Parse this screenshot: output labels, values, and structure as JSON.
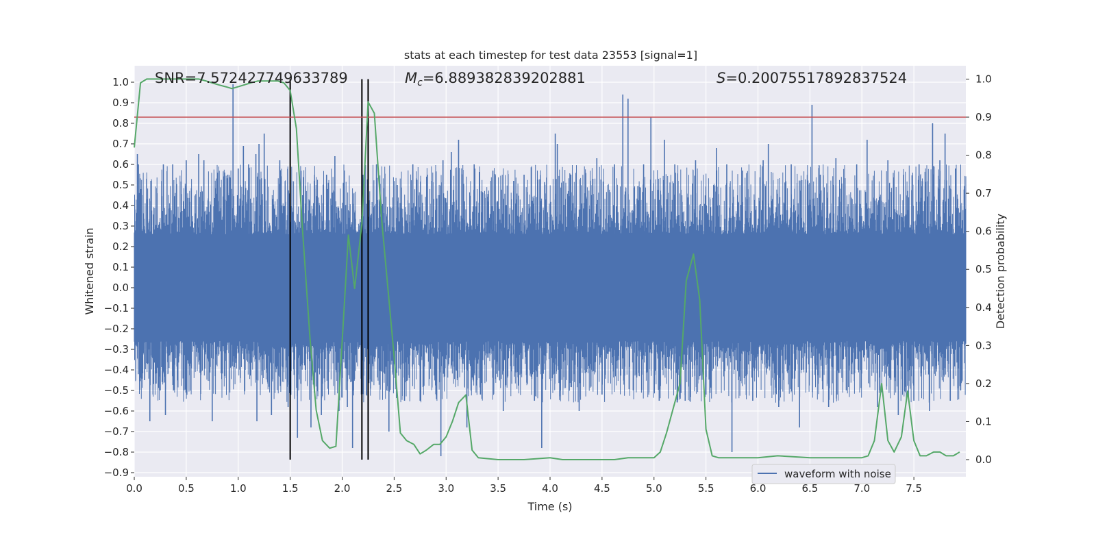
{
  "chart_data": {
    "type": "line",
    "title": "stats at each timestep for test data 23553 [signal=1]",
    "xlabel": "Time (s)",
    "ylabel_left": "Whitened strain",
    "ylabel_right": "Detection probability",
    "xlim": [
      0.0,
      8.0
    ],
    "ylim_left": [
      -0.92,
      1.08
    ],
    "ylim_right": [
      -0.045,
      1.035
    ],
    "xticks": [
      0.0,
      0.5,
      1.0,
      1.5,
      2.0,
      2.5,
      3.0,
      3.5,
      4.0,
      4.5,
      5.0,
      5.5,
      6.0,
      6.5,
      7.0,
      7.5
    ],
    "xtick_labels": [
      "0.0",
      "0.5",
      "1.0",
      "1.5",
      "2.0",
      "2.5",
      "3.0",
      "3.5",
      "4.0",
      "4.5",
      "5.0",
      "5.5",
      "6.0",
      "6.5",
      "7.0",
      "7.5"
    ],
    "yticks_left": [
      1.0,
      0.9,
      0.8,
      0.7,
      0.6,
      0.5,
      0.4,
      0.3,
      0.2,
      0.1,
      0.0,
      -0.1,
      -0.2,
      -0.3,
      -0.4,
      -0.5,
      -0.6,
      -0.7,
      -0.8,
      -0.9
    ],
    "ytick_labels_left": [
      "1.0",
      "0.9",
      "0.8",
      "0.7",
      "0.6",
      "0.5",
      "0.4",
      "0.3",
      "0.2",
      "0.1",
      "0.0",
      "−0.1",
      "−0.2",
      "−0.3",
      "−0.4",
      "−0.5",
      "−0.6",
      "−0.7",
      "−0.8",
      "−0.9"
    ],
    "yticks_right": [
      1.0,
      0.9,
      0.8,
      0.7,
      0.6,
      0.5,
      0.4,
      0.3,
      0.2,
      0.1,
      0.0
    ],
    "ytick_labels_right": [
      "1.0",
      "0.9",
      "0.8",
      "0.7",
      "0.6",
      "0.5",
      "0.4",
      "0.3",
      "0.2",
      "0.1",
      "0.0"
    ],
    "annotations": {
      "snr": "SNR=7.572427749633789",
      "mc_symbol": "M",
      "mc_sub": "c",
      "mc_value": "=6.889382839202881",
      "s_symbol": "S",
      "s_value": "=0.20075517892837524"
    },
    "legend": {
      "label": "waveform with noise",
      "placement": "lower-right"
    },
    "threshold_line": {
      "value_right_axis": 0.9,
      "color": "#c44e52"
    },
    "vertical_markers": {
      "x": [
        1.5,
        2.19,
        2.25
      ],
      "ymin_right": 0.0,
      "ymax_right": 1.0,
      "color": "#000000"
    },
    "waveform": {
      "name": "waveform with noise",
      "color": "#4c72b0",
      "x_range": [
        0.0,
        8.0
      ],
      "core_amplitude": 0.26,
      "spikes": [
        {
          "x": 0.03,
          "y": 0.65
        },
        {
          "x": 0.04,
          "y": 0.6
        },
        {
          "x": 0.1,
          "y": -0.45
        },
        {
          "x": 0.15,
          "y": -0.65
        },
        {
          "x": 0.16,
          "y": 0.52
        },
        {
          "x": 0.25,
          "y": -0.5
        },
        {
          "x": 0.28,
          "y": 0.6
        },
        {
          "x": 0.3,
          "y": -0.62
        },
        {
          "x": 0.37,
          "y": 0.6
        },
        {
          "x": 0.5,
          "y": 0.62
        },
        {
          "x": 0.62,
          "y": 0.65
        },
        {
          "x": 0.67,
          "y": 0.62
        },
        {
          "x": 0.75,
          "y": -0.65
        },
        {
          "x": 0.8,
          "y": 0.56
        },
        {
          "x": 0.9,
          "y": 0.55
        },
        {
          "x": 0.95,
          "y": 0.99
        },
        {
          "x": 1.0,
          "y": 0.58
        },
        {
          "x": 1.05,
          "y": 0.69
        },
        {
          "x": 1.1,
          "y": 0.6
        },
        {
          "x": 1.17,
          "y": 0.65
        },
        {
          "x": 1.18,
          "y": -0.65
        },
        {
          "x": 1.2,
          "y": 0.7
        },
        {
          "x": 1.25,
          "y": 0.75
        },
        {
          "x": 1.32,
          "y": -0.62
        },
        {
          "x": 1.4,
          "y": 0.62
        },
        {
          "x": 1.48,
          "y": -0.58
        },
        {
          "x": 1.5,
          "y": 0.35
        },
        {
          "x": 1.57,
          "y": -0.73
        },
        {
          "x": 1.62,
          "y": 0.45
        },
        {
          "x": 1.7,
          "y": -0.68
        },
        {
          "x": 1.75,
          "y": 0.5
        },
        {
          "x": 1.8,
          "y": -0.62
        },
        {
          "x": 1.85,
          "y": 0.55
        },
        {
          "x": 1.93,
          "y": 0.64
        },
        {
          "x": 1.97,
          "y": -0.6
        },
        {
          "x": 2.05,
          "y": -0.58
        },
        {
          "x": 2.1,
          "y": -0.78
        },
        {
          "x": 2.2,
          "y": 0.55
        },
        {
          "x": 2.25,
          "y": -0.65
        },
        {
          "x": 2.33,
          "y": 0.6
        },
        {
          "x": 2.45,
          "y": -0.7
        },
        {
          "x": 2.53,
          "y": 0.5
        },
        {
          "x": 2.6,
          "y": -0.55
        },
        {
          "x": 2.68,
          "y": 0.6
        },
        {
          "x": 2.75,
          "y": -0.55
        },
        {
          "x": 2.82,
          "y": 0.55
        },
        {
          "x": 2.95,
          "y": -0.82
        },
        {
          "x": 2.97,
          "y": 0.62
        },
        {
          "x": 3.05,
          "y": 0.66
        },
        {
          "x": 3.12,
          "y": 0.72
        },
        {
          "x": 3.2,
          "y": -0.68
        },
        {
          "x": 3.27,
          "y": 0.6
        },
        {
          "x": 3.33,
          "y": -0.52
        },
        {
          "x": 3.45,
          "y": 0.57
        },
        {
          "x": 3.55,
          "y": -0.6
        },
        {
          "x": 3.65,
          "y": 0.52
        },
        {
          "x": 3.75,
          "y": 0.55
        },
        {
          "x": 3.85,
          "y": -0.55
        },
        {
          "x": 3.92,
          "y": -0.78
        },
        {
          "x": 4.05,
          "y": 0.75
        },
        {
          "x": 4.07,
          "y": 0.7
        },
        {
          "x": 4.1,
          "y": -0.5
        },
        {
          "x": 4.2,
          "y": 0.55
        },
        {
          "x": 4.28,
          "y": -0.6
        },
        {
          "x": 4.45,
          "y": 0.63
        },
        {
          "x": 4.5,
          "y": -0.52
        },
        {
          "x": 4.62,
          "y": 0.6
        },
        {
          "x": 4.7,
          "y": 0.94
        },
        {
          "x": 4.75,
          "y": 0.92
        },
        {
          "x": 4.8,
          "y": -0.5
        },
        {
          "x": 4.9,
          "y": 0.6
        },
        {
          "x": 4.97,
          "y": 0.83
        },
        {
          "x": 5.05,
          "y": -0.55
        },
        {
          "x": 5.1,
          "y": 0.72
        },
        {
          "x": 5.2,
          "y": 0.6
        },
        {
          "x": 5.3,
          "y": -0.55
        },
        {
          "x": 5.4,
          "y": 0.62
        },
        {
          "x": 5.5,
          "y": -0.52
        },
        {
          "x": 5.6,
          "y": 0.68
        },
        {
          "x": 5.7,
          "y": 0.6
        },
        {
          "x": 5.75,
          "y": -0.8
        },
        {
          "x": 5.85,
          "y": 0.57
        },
        {
          "x": 5.95,
          "y": -0.55
        },
        {
          "x": 6.05,
          "y": 0.62
        },
        {
          "x": 6.1,
          "y": 0.7
        },
        {
          "x": 6.2,
          "y": -0.58
        },
        {
          "x": 6.32,
          "y": 0.6
        },
        {
          "x": 6.4,
          "y": -0.68
        },
        {
          "x": 6.52,
          "y": 0.89
        },
        {
          "x": 6.6,
          "y": 0.55
        },
        {
          "x": 6.68,
          "y": -0.58
        },
        {
          "x": 6.75,
          "y": 0.63
        },
        {
          "x": 6.85,
          "y": -0.5
        },
        {
          "x": 6.95,
          "y": 0.6
        },
        {
          "x": 7.05,
          "y": 0.72
        },
        {
          "x": 7.15,
          "y": -0.58
        },
        {
          "x": 7.25,
          "y": 0.62
        },
        {
          "x": 7.35,
          "y": -0.62
        },
        {
          "x": 7.4,
          "y": 0.55
        },
        {
          "x": 7.5,
          "y": -0.55
        },
        {
          "x": 7.55,
          "y": 0.6
        },
        {
          "x": 7.65,
          "y": -0.6
        },
        {
          "x": 7.68,
          "y": 0.8
        },
        {
          "x": 7.75,
          "y": 0.62
        },
        {
          "x": 7.8,
          "y": 0.75
        },
        {
          "x": 7.85,
          "y": -0.55
        },
        {
          "x": 7.9,
          "y": 0.58
        },
        {
          "x": 7.95,
          "y": -0.5
        }
      ]
    },
    "probability": {
      "name": "detection probability",
      "color": "#55a868",
      "x": [
        0.0,
        0.06,
        0.12,
        0.19,
        0.25,
        0.31,
        0.38,
        0.44,
        0.5,
        0.56,
        0.62,
        0.69,
        0.75,
        0.81,
        0.88,
        0.94,
        1.0,
        1.06,
        1.12,
        1.19,
        1.25,
        1.31,
        1.38,
        1.44,
        1.5,
        1.56,
        1.62,
        1.69,
        1.75,
        1.81,
        1.88,
        1.94,
        2.0,
        2.06,
        2.12,
        2.19,
        2.25,
        2.31,
        2.38,
        2.44,
        2.5,
        2.56,
        2.62,
        2.69,
        2.75,
        2.81,
        2.88,
        2.94,
        3.0,
        3.06,
        3.12,
        3.19,
        3.25,
        3.31,
        3.5,
        3.75,
        4.0,
        4.12,
        4.25,
        4.38,
        4.5,
        4.62,
        4.75,
        4.88,
        5.0,
        5.06,
        5.12,
        5.19,
        5.25,
        5.31,
        5.38,
        5.44,
        5.5,
        5.56,
        5.62,
        5.75,
        6.0,
        6.19,
        6.5,
        6.75,
        7.0,
        7.06,
        7.12,
        7.19,
        7.25,
        7.31,
        7.38,
        7.44,
        7.5,
        7.56,
        7.62,
        7.69,
        7.75,
        7.81,
        7.88,
        7.94
      ],
      "y": [
        0.82,
        0.99,
        1.0,
        1.0,
        1.0,
        1.0,
        1.0,
        1.0,
        1.0,
        1.0,
        1.0,
        0.995,
        0.99,
        0.985,
        0.98,
        0.975,
        0.98,
        0.985,
        0.99,
        0.995,
        0.995,
        0.995,
        0.995,
        0.99,
        0.97,
        0.87,
        0.6,
        0.32,
        0.13,
        0.05,
        0.03,
        0.035,
        0.31,
        0.59,
        0.45,
        0.62,
        0.94,
        0.91,
        0.63,
        0.45,
        0.27,
        0.07,
        0.05,
        0.04,
        0.015,
        0.025,
        0.04,
        0.04,
        0.06,
        0.1,
        0.15,
        0.17,
        0.025,
        0.005,
        0.0,
        0.0,
        0.005,
        0.0,
        0.0,
        0.0,
        0.0,
        0.0,
        0.005,
        0.005,
        0.005,
        0.02,
        0.07,
        0.14,
        0.2,
        0.47,
        0.54,
        0.42,
        0.08,
        0.01,
        0.005,
        0.005,
        0.005,
        0.01,
        0.005,
        0.005,
        0.005,
        0.01,
        0.05,
        0.2,
        0.05,
        0.02,
        0.06,
        0.18,
        0.05,
        0.01,
        0.01,
        0.02,
        0.02,
        0.01,
        0.01,
        0.02
      ]
    }
  }
}
